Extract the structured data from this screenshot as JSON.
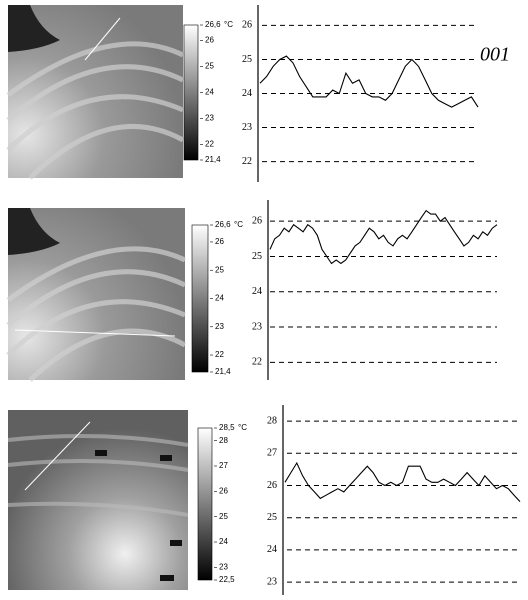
{
  "figure_label": "001",
  "chart_data": [
    {
      "type": "line",
      "ylim": [
        21.4,
        26.6
      ],
      "yticks": [
        22,
        23,
        24,
        25,
        26
      ],
      "grid": true,
      "color": "#000000",
      "colorbar": {
        "unit": "°C",
        "ticks": [
          {
            "value": 26.6,
            "label": "26,6"
          },
          26,
          25,
          24,
          23,
          22,
          {
            "value": 21.4,
            "label": "21,4"
          }
        ]
      },
      "values": [
        24.3,
        24.5,
        24.8,
        25.0,
        25.1,
        24.9,
        24.5,
        24.2,
        23.9,
        23.9,
        23.9,
        24.1,
        24.0,
        24.6,
        24.3,
        24.4,
        24.0,
        23.9,
        23.9,
        23.8,
        24.0,
        24.4,
        24.8,
        25.0,
        24.8,
        24.4,
        24.0,
        23.8,
        23.7,
        23.6,
        23.7,
        23.8,
        23.9,
        23.6
      ]
    },
    {
      "type": "line",
      "ylim": [
        21.5,
        26.6
      ],
      "yticks": [
        22,
        23,
        24,
        25,
        26
      ],
      "grid": true,
      "color": "#000000",
      "colorbar": {
        "unit": "°C",
        "ticks": [
          {
            "value": 26.6,
            "label": "26,6"
          },
          26,
          25,
          24,
          23,
          22,
          {
            "value": 21.4,
            "label": "21,4"
          }
        ]
      },
      "values": [
        25.2,
        25.5,
        25.6,
        25.8,
        25.7,
        25.9,
        25.8,
        25.7,
        25.9,
        25.8,
        25.6,
        25.2,
        25.0,
        24.8,
        24.9,
        24.8,
        24.9,
        25.1,
        25.3,
        25.4,
        25.6,
        25.8,
        25.7,
        25.5,
        25.6,
        25.4,
        25.3,
        25.5,
        25.6,
        25.5,
        25.7,
        25.9,
        26.1,
        26.3,
        26.2,
        26.2,
        26.0,
        26.1,
        25.9,
        25.7,
        25.5,
        25.3,
        25.4,
        25.6,
        25.5,
        25.7,
        25.6,
        25.8,
        25.9
      ]
    },
    {
      "type": "line",
      "ylim": [
        22.6,
        28.5
      ],
      "yticks": [
        23,
        24,
        25,
        26,
        27,
        28
      ],
      "grid": true,
      "color": "#000000",
      "colorbar": {
        "unit": "°C",
        "ticks": [
          {
            "value": 28.5,
            "label": "28,5"
          },
          28,
          27,
          26,
          25,
          24,
          23,
          {
            "value": 22.5,
            "label": "22,5"
          }
        ]
      },
      "values": [
        26.1,
        26.4,
        26.7,
        26.3,
        26.0,
        25.8,
        25.6,
        25.7,
        25.8,
        25.9,
        25.8,
        26.0,
        26.2,
        26.4,
        26.6,
        26.4,
        26.1,
        26.0,
        26.1,
        26.0,
        26.1,
        26.6,
        26.6,
        26.6,
        26.2,
        26.1,
        26.1,
        26.2,
        26.1,
        26.0,
        26.2,
        26.4,
        26.2,
        26.0,
        26.3,
        26.1,
        25.9,
        26.0,
        25.9,
        25.7,
        25.5
      ]
    }
  ]
}
